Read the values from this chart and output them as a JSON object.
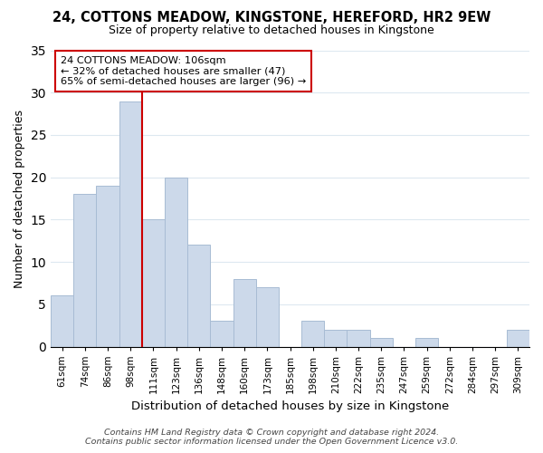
{
  "title": "24, COTTONS MEADOW, KINGSTONE, HEREFORD, HR2 9EW",
  "subtitle": "Size of property relative to detached houses in Kingstone",
  "xlabel": "Distribution of detached houses by size in Kingstone",
  "ylabel": "Number of detached properties",
  "bar_color": "#ccd9ea",
  "bar_edge_color": "#a8bcd4",
  "bin_labels": [
    "61sqm",
    "74sqm",
    "86sqm",
    "98sqm",
    "111sqm",
    "123sqm",
    "136sqm",
    "148sqm",
    "160sqm",
    "173sqm",
    "185sqm",
    "198sqm",
    "210sqm",
    "222sqm",
    "235sqm",
    "247sqm",
    "259sqm",
    "272sqm",
    "284sqm",
    "297sqm",
    "309sqm"
  ],
  "bar_heights": [
    6,
    18,
    19,
    29,
    15,
    20,
    12,
    3,
    8,
    7,
    0,
    3,
    2,
    2,
    1,
    0,
    1,
    0,
    0,
    0,
    2
  ],
  "bin_edges": [
    0,
    1,
    2,
    3,
    4,
    5,
    6,
    7,
    8,
    9,
    10,
    11,
    12,
    13,
    14,
    15,
    16,
    17,
    18,
    19,
    20,
    21
  ],
  "vline_x": 4,
  "vline_color": "#cc0000",
  "annotation_text": "24 COTTONS MEADOW: 106sqm\n← 32% of detached houses are smaller (47)\n65% of semi-detached houses are larger (96) →",
  "annotation_box_color": "#ffffff",
  "annotation_box_edge": "#cc0000",
  "ylim": [
    0,
    35
  ],
  "yticks": [
    0,
    5,
    10,
    15,
    20,
    25,
    30,
    35
  ],
  "footer_line1": "Contains HM Land Registry data © Crown copyright and database right 2024.",
  "footer_line2": "Contains public sector information licensed under the Open Government Licence v3.0.",
  "background_color": "#ffffff",
  "grid_color": "#dde8f0"
}
